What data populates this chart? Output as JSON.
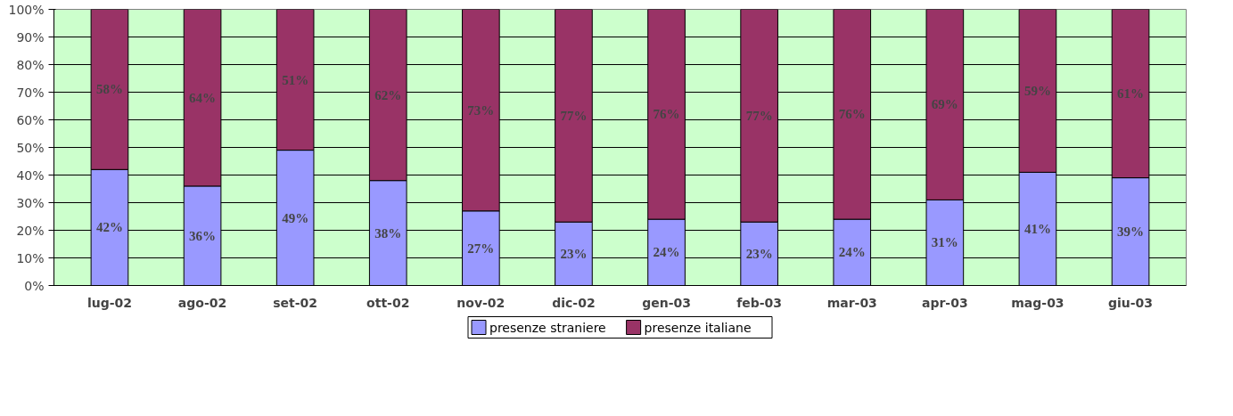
{
  "chart_data": {
    "type": "bar",
    "stacked": true,
    "categories": [
      "lug-02",
      "ago-02",
      "set-02",
      "ott-02",
      "nov-02",
      "dic-02",
      "gen-03",
      "feb-03",
      "mar-03",
      "apr-03",
      "mag-03",
      "giu-03"
    ],
    "series": [
      {
        "name": "presenze straniere",
        "color": "#9999ff",
        "values": [
          42,
          36,
          49,
          38,
          27,
          23,
          24,
          23,
          24,
          31,
          41,
          39
        ]
      },
      {
        "name": "presenze italiane",
        "color": "#993366",
        "values": [
          58,
          64,
          51,
          62,
          73,
          77,
          76,
          77,
          76,
          69,
          59,
          61
        ]
      }
    ],
    "value_labels": [
      [
        "42%",
        "36%",
        "49%",
        "38%",
        "27%",
        "23%",
        "24%",
        "23%",
        "24%",
        "31%",
        "41%",
        "39%"
      ],
      [
        "58%",
        "64%",
        "51%",
        "62%",
        "73%",
        "77%",
        "76%",
        "77%",
        "76%",
        "69%",
        "59%",
        "61%"
      ]
    ],
    "ylim": [
      0,
      100
    ],
    "yticks": [
      {
        "value": 0,
        "label": "0%"
      },
      {
        "value": 10,
        "label": "10%"
      },
      {
        "value": 20,
        "label": "20%"
      },
      {
        "value": 30,
        "label": "30%"
      },
      {
        "value": 40,
        "label": "40%"
      },
      {
        "value": 50,
        "label": "50%"
      },
      {
        "value": 60,
        "label": "60%"
      },
      {
        "value": 70,
        "label": "70%"
      },
      {
        "value": 80,
        "label": "80%"
      },
      {
        "value": 90,
        "label": "90%"
      },
      {
        "value": 100,
        "label": "100%"
      }
    ],
    "grid": "y",
    "legend": "bottom"
  }
}
